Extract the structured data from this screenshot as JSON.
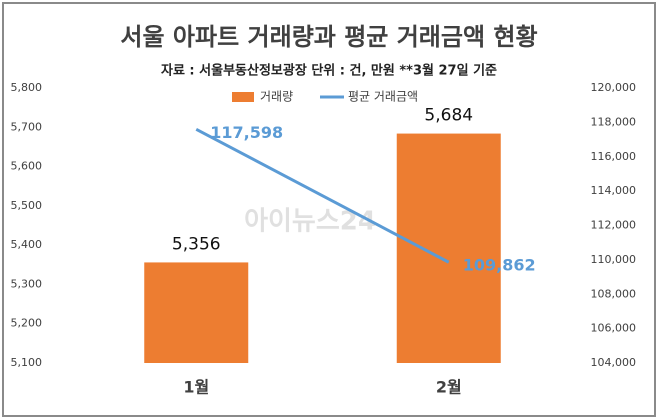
{
  "chart_data": {
    "type": "combo",
    "title": "서울 아파트  거래량과 평균 거래금액 현황",
    "subtitle": "자료 : 서울부동산정보광장 단위 : 건, 만원  **3월 27일 기준",
    "watermark": "아이뉴스24",
    "categories": [
      "1월",
      "2월"
    ],
    "series": [
      {
        "name": "거래량",
        "type": "bar",
        "color": "#ed7d31",
        "values": [
          5356,
          5684
        ],
        "value_labels": [
          "5,356",
          "5,684"
        ]
      },
      {
        "name": "평균 거래금액",
        "type": "line",
        "axis": "y2",
        "color": "#5b9bd5",
        "values": [
          117598,
          109862
        ],
        "value_labels": [
          "117,598",
          "109,862"
        ]
      }
    ],
    "ylim": [
      5100,
      5800
    ],
    "yticks": [
      {
        "value": 5100,
        "label": "5,100"
      },
      {
        "value": 5200,
        "label": "5,200"
      },
      {
        "value": 5300,
        "label": "5,300"
      },
      {
        "value": 5400,
        "label": "5,400"
      },
      {
        "value": 5500,
        "label": "5,500"
      },
      {
        "value": 5600,
        "label": "5,600"
      },
      {
        "value": 5700,
        "label": "5,700"
      },
      {
        "value": 5800,
        "label": "5,800"
      }
    ],
    "y2lim": [
      104000,
      120000
    ],
    "y2ticks": [
      {
        "value": 104000,
        "label": "104,000"
      },
      {
        "value": 106000,
        "label": "106,000"
      },
      {
        "value": 108000,
        "label": "108,000"
      },
      {
        "value": 110000,
        "label": "110,000"
      },
      {
        "value": 112000,
        "label": "112,000"
      },
      {
        "value": 114000,
        "label": "114,000"
      },
      {
        "value": 116000,
        "label": "116,000"
      },
      {
        "value": 118000,
        "label": "118,000"
      },
      {
        "value": 120000,
        "label": "120,000"
      }
    ],
    "legend": "top",
    "grid": false
  }
}
